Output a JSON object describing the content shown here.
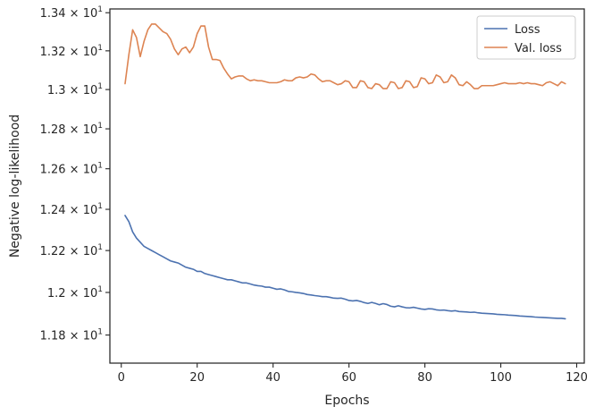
{
  "chart_data": {
    "type": "line",
    "xlabel": "Epochs",
    "ylabel": "Negative log-likelihood",
    "xlim": [
      -3,
      122
    ],
    "ylim": [
      11.67,
      13.42
    ],
    "yscale": "log",
    "xticks": [
      0,
      20,
      40,
      60,
      80,
      100,
      120
    ],
    "yticks": [
      {
        "value": 11.8,
        "mantissa": "1.18",
        "base": "10",
        "exp": "1"
      },
      {
        "value": 12.0,
        "mantissa": "1.2",
        "base": "10",
        "exp": "1"
      },
      {
        "value": 12.2,
        "mantissa": "1.22",
        "base": "10",
        "exp": "1"
      },
      {
        "value": 12.4,
        "mantissa": "1.24",
        "base": "10",
        "exp": "1"
      },
      {
        "value": 12.6,
        "mantissa": "1.26",
        "base": "10",
        "exp": "1"
      },
      {
        "value": 12.8,
        "mantissa": "1.28",
        "base": "10",
        "exp": "1"
      },
      {
        "value": 13.0,
        "mantissa": "1.3",
        "base": "10",
        "exp": "1"
      },
      {
        "value": 13.2,
        "mantissa": "1.32",
        "base": "10",
        "exp": "1"
      },
      {
        "value": 13.4,
        "mantissa": "1.34",
        "base": "10",
        "exp": "1"
      }
    ],
    "grid": false,
    "legend": "top-right",
    "series": [
      {
        "name": "Loss",
        "color": "#4c72b0",
        "x_start": 1,
        "x_step": 1,
        "values": [
          12.37,
          12.34,
          12.29,
          12.26,
          12.24,
          12.22,
          12.21,
          12.2,
          12.19,
          12.18,
          12.17,
          12.16,
          12.15,
          12.145,
          12.14,
          12.13,
          12.12,
          12.115,
          12.11,
          12.1,
          12.1,
          12.09,
          12.085,
          12.08,
          12.075,
          12.07,
          12.065,
          12.06,
          12.06,
          12.055,
          12.05,
          12.045,
          12.045,
          12.04,
          12.035,
          12.032,
          12.03,
          12.025,
          12.025,
          12.02,
          12.015,
          12.017,
          12.012,
          12.005,
          12.003,
          12.0,
          11.998,
          11.995,
          11.99,
          11.988,
          11.985,
          11.983,
          11.98,
          11.98,
          11.977,
          11.973,
          11.972,
          11.973,
          11.968,
          11.962,
          11.96,
          11.962,
          11.958,
          11.952,
          11.948,
          11.953,
          11.948,
          11.942,
          11.947,
          11.943,
          11.935,
          11.932,
          11.937,
          11.932,
          11.928,
          11.927,
          11.93,
          11.926,
          11.922,
          11.92,
          11.923,
          11.922,
          11.918,
          11.916,
          11.917,
          11.914,
          11.912,
          11.914,
          11.91,
          11.909,
          11.908,
          11.906,
          11.907,
          11.904,
          11.902,
          11.901,
          11.9,
          11.899,
          11.897,
          11.896,
          11.895,
          11.893,
          11.892,
          11.891,
          11.889,
          11.888,
          11.887,
          11.886,
          11.884,
          11.883,
          11.882,
          11.881,
          11.88,
          11.879,
          11.878,
          11.878,
          11.876
        ]
      },
      {
        "name": "Val. loss",
        "color": "#dd8452",
        "x_start": 1,
        "x_step": 1,
        "values": [
          13.03,
          13.18,
          13.31,
          13.27,
          13.17,
          13.25,
          13.31,
          13.34,
          13.34,
          13.32,
          13.3,
          13.29,
          13.26,
          13.21,
          13.18,
          13.21,
          13.22,
          13.19,
          13.22,
          13.29,
          13.33,
          13.33,
          13.22,
          13.155,
          13.155,
          13.15,
          13.11,
          13.08,
          13.055,
          13.065,
          13.07,
          13.07,
          13.055,
          13.045,
          13.05,
          13.045,
          13.045,
          13.04,
          13.035,
          13.035,
          13.035,
          13.04,
          13.05,
          13.045,
          13.045,
          13.06,
          13.065,
          13.06,
          13.065,
          13.08,
          13.075,
          13.055,
          13.04,
          13.045,
          13.045,
          13.035,
          13.025,
          13.03,
          13.045,
          13.04,
          13.01,
          13.01,
          13.045,
          13.04,
          13.01,
          13.005,
          13.03,
          13.025,
          13.005,
          13.005,
          13.04,
          13.035,
          13.005,
          13.01,
          13.045,
          13.04,
          13.01,
          13.015,
          13.06,
          13.055,
          13.03,
          13.035,
          13.075,
          13.065,
          13.035,
          13.04,
          13.075,
          13.06,
          13.025,
          13.02,
          13.04,
          13.025,
          13.005,
          13.005,
          13.02,
          13.02,
          13.02,
          13.02,
          13.025,
          13.03,
          13.035,
          13.03,
          13.03,
          13.03,
          13.035,
          13.03,
          13.035,
          13.03,
          13.03,
          13.025,
          13.02,
          13.035,
          13.04,
          13.03,
          13.02,
          13.04,
          13.03
        ]
      }
    ]
  }
}
